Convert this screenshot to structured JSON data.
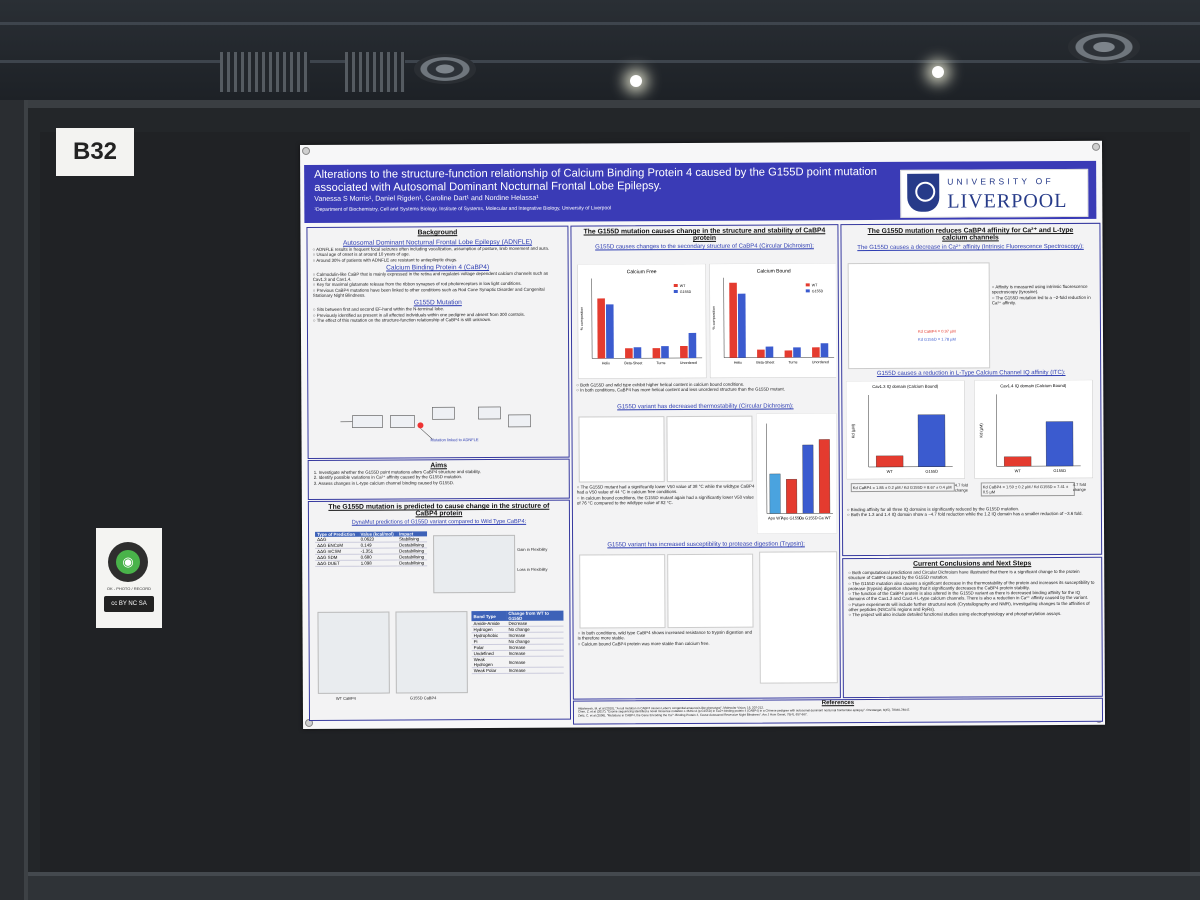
{
  "booth": {
    "id": "B32"
  },
  "cc_card": {
    "text": "OK - PHOTO / RECORD",
    "license": "cc BY NC SA"
  },
  "poster": {
    "title": "Alterations to the structure-function relationship of Calcium Binding Protein 4 caused by the G155D point mutation associated with Autosomal Dominant Nocturnal Frontal Lobe Epilepsy.",
    "authors": "Vanessa S Morris¹, Daniel Rigden¹, Caroline Dart¹ and Nordine Helassa¹",
    "affiliation": "¹Department of Biochemistry, Cell and Systems Biology, Institute of Systems, Molecular and Integrative Biology, University of Liverpool",
    "logo": {
      "line1": "UNIVERSITY OF",
      "line2": "LIVERPOOL"
    },
    "background": {
      "title": "Background",
      "adnfle_title": "Autosomal Dominant Nocturnal Frontal Lobe Epilepsy (ADNFLE)",
      "adnfle_1": "○ ADNFLE results in frequent focal seizures often including vocalization, assumption of posture, limb movement and aura.",
      "adnfle_2": "○ Usual age of onset is at around 10 years of age.",
      "adnfle_3": "○ Around 30% of patients with ADNFLE are resistant to antiepileptic drugs.",
      "cabp4_title": "Calcium Binding Protein 4 (CaBP4)",
      "cabp4_1": "○ Calmodulin-like CaBP that is mainly expressed in the retina and regulates voltage dependent calcium channels such as Cav1.3 and Cav1.4.",
      "cabp4_2": "○ Key for maximal glutamate release from the ribbon synapses of rod photoreceptors in low light conditions.",
      "cabp4_3": "○ Previous CaBP4 mutations have been linked to other conditions such as Rod Cone Synaptic Disorder and Congenital Stationary Night Blindness.",
      "g155d_title": "G155D Mutation",
      "g155d_1": "○ Sits between first and second EF-hand within the N-terminal lobe.",
      "g155d_2": "○ Previously identified as present in all affected individuals within one pedigree and absent from 300 controls.",
      "g155d_3": "○ The effect of this mutation on the structure-function relationship of CaBP4 is still unknown.",
      "mutation_label": "Mutation linked to ADNFLE"
    },
    "aims": {
      "title": "Aims",
      "a1": "1. Investigate whether the G155D point mutations alters CaBP4 structure and stability.",
      "a2": "2. Identify possible variations in Ca²⁺ affinity caused by the G155D mutation.",
      "a3": "3. Assess changes in L-type calcium channel binding caused by G155D."
    },
    "prediction": {
      "title": "The G155D mutation is predicted to cause change in the structure of CaBP4 protein",
      "subtitle": "DynaMut predictions of G155D variant compared to Wild Type CaBP4:",
      "headers": [
        "Type of Prediction",
        "Value (kcal/mol)",
        "Impact"
      ],
      "rows": [
        [
          "ΔΔG",
          "0.0623",
          "Stabilising"
        ],
        [
          "ΔΔG ENCoM",
          "0.149",
          "Destabilising"
        ],
        [
          "ΔΔG mCSM",
          "-1.351",
          "Destabilising"
        ],
        [
          "ΔΔG SDM",
          "0.680",
          "Destabilising"
        ],
        [
          "ΔΔG DUET",
          "1.098",
          "Destabilising"
        ]
      ],
      "gain": "Gain in Flexibility",
      "loss": "Loss in Flexibility",
      "bond_headers": [
        "Bond Type",
        "Change from WT to G155D"
      ],
      "bond_rows": [
        [
          "Amide-Amide",
          "Decrease"
        ],
        [
          "Hydrogen",
          "No change"
        ],
        [
          "Hydrophobic",
          "Increase"
        ],
        [
          "Pi",
          "No change"
        ],
        [
          "Polar",
          "Increase"
        ],
        [
          "Undefined",
          "Increase"
        ],
        [
          "Weak Hydrogen",
          "Increase"
        ],
        [
          "Weak Polar",
          "Increase"
        ]
      ],
      "wt_label": "WT CaBP4",
      "mut_label": "G155D CaBP4"
    },
    "structure": {
      "title": "The G155D mutation causes change in the structure and stability of CaBP4 protein",
      "cd_title": "G155D causes changes to the secondary structure of CaBP4 (Circular Dichroism):",
      "cf_label": "Calcium Free",
      "cb_label": "Calcium Bound",
      "ylabel": "% composition",
      "categories": [
        "Helix",
        "Beta-Sheet",
        "Turns",
        "Unordered"
      ],
      "cd_1": "○ Both G155D and wild type exhibit higher helical content in calcium bound conditions.",
      "cd_2": "○ In both conditions, CaBP4 has more helical content and less unordered structure than the G155D mutant.",
      "thermo_title": "G155D variant has decreased thermostability (Circular Dichroism):",
      "thermo_1": "○ The G155D mutant had a significantly lower V50 value of 38 °C while the wildtype CaBP4 had a V50 value of 44 °C in calcium free conditions.",
      "thermo_2": "○ In calcium bound conditions, the G155D mutant again had a significantly lower V50 value of 76 °C compared to the wildtype value of 82 °C.",
      "tryp_title": "G155D variant has increased susceptibility to protease digestion (Trypsin):",
      "tryp_1": "○ In both conditions, wild type CaBP4 shows increased resistance to trypsin digestion and is therefore more stable.",
      "tryp_2": "○ Calcium bound CaBP4 protein was more stable than calcium free."
    },
    "affinity": {
      "title": "The G155D mutation reduces CaBP4 affinity for Ca²⁺ and L-type calcium channels",
      "fluor_title": "The G155D causes a decrease in Ca²⁺ affinity (Intrinsic Fluorescence Spectroscopy):",
      "fluor_1": "○ Affinity is measured using intrinsic fluorescence spectroscopy (tyrosine).",
      "fluor_2": "○ The G155D mutation led to a ~2-fold reduction in Ca²⁺ affinity.",
      "kd_wt": "Kd CaBP4 = 0.97 µM",
      "kd_mut": "Kd G155D = 1.78 µM",
      "iq_title": "G155D causes a reduction in L-Type Calcium Channel IQ affinity (ITC):",
      "iq13": "Cav1.3 IQ domain (Calcium Bound)",
      "iq14": "Cav1.4 IQ domain (Calcium Bound)",
      "iq13_kd": "Kd CaBP4 = 1.85 ± 0.2 µM / Kd G155D = 8.67 ± 0.4 µM",
      "iq14_kd": "Kd CaBP4 = 1.59 ± 0.2 µM / Kd G155D = 7.41 ± 0.5 µM",
      "fold13": "4.7 fold change",
      "fold14": "4.7 fold change",
      "iq_1": "○ Binding affinity for all three IQ domains is significantly reduced by the G155D mutation.",
      "iq_2": "○ Both the 1.3 and 1.4 IQ domain show a ~4.7 fold reduction while the 1.2 IQ domain has a smaller reduction of ~3.6 fold."
    },
    "conclusions": {
      "title": "Current Conclusions and Next Steps",
      "c1": "○ Both computational predictions and Circular Dichroism have illustrated that there is a significant change to the protein structure of CaBP4 caused by the G155D mutation.",
      "c2": "○ The G155D mutation also causes a significant decrease in the thermostability of the protein and increases its susceptibility to protease (trypsin) digestion showing that it significantly decreases the CaBP4 protein stability.",
      "c3": "○ The function of the CaBP4 protein is also altered in the G155D variant as there is decreased binding affinity for the IQ domains of the Cav1.3 and Cav1.4 L-type calcium channels. There is also a reduction in Ca²⁺ affinity caused by the variant.",
      "c4": "○ Future experiments will include further structural work (Crystallography and NMR), investigating changes to the affinities of other peptides (NSCaTE regions and RyRs).",
      "c5": "○ The project will also include detailed functional studies using electrophysiology and phosphorylation assays."
    },
    "references": {
      "title": "References",
      "r1": "Aldahmesh, M. et al (2010), \"A null mutation in CABP4 causes Leber's congenital amaurosis-like phenotype\", Molecular Vision, 16, 207-212.",
      "r2": "Chen, Z. et al (2017), \"Exome sequencing identified a novel missense mutation c.464G>A (p.G155D) in Ca2+-binding protein 4 (CABP4) in a Chinese pedigree with autosomal dominant nocturnal frontal lobe epilepsy\". Oncotarget, 8(45), 78940-78947.",
      "r3": "Zeitz, C. et al (2006), \"Mutations in CABP4, the Gene Encoding the Ca²⁺-Binding Protein 4, Cause Autosomal Recessive Night Blindness\". Am J Hum Genet, 79(4), 657-667."
    }
  },
  "chart_data": [
    {
      "type": "bar",
      "title": "Calcium Free",
      "categories": [
        "Helix",
        "Beta-Sheet",
        "Turns",
        "Unordered"
      ],
      "ylabel": "% composition",
      "ylim": [
        0,
        80
      ],
      "series": [
        {
          "name": "WT",
          "values": [
            60,
            10,
            10,
            12
          ]
        },
        {
          "name": "G155D",
          "values": [
            54,
            11,
            12,
            25
          ]
        }
      ]
    },
    {
      "type": "bar",
      "title": "Calcium Bound",
      "categories": [
        "Helix",
        "Beta-Sheet",
        "Turns",
        "Unordered"
      ],
      "ylabel": "% composition",
      "ylim": [
        0,
        80
      ],
      "series": [
        {
          "name": "WT",
          "values": [
            75,
            8,
            7,
            10
          ]
        },
        {
          "name": "G155D",
          "values": [
            64,
            11,
            10,
            14
          ]
        }
      ]
    },
    {
      "type": "bar",
      "title": "V50",
      "categories": [
        "Apo WT",
        "Apo G155D",
        "Ca G155D",
        "Ca WT"
      ],
      "ylim": [
        0,
        100
      ],
      "values": [
        44,
        38,
        76,
        82
      ]
    },
    {
      "type": "bar",
      "title": "Cav1.3 IQ domain (Calcium Bound)",
      "categories": [
        "WT",
        "G155D"
      ],
      "ylabel": "Kd (µM)",
      "ylim": [
        0,
        12
      ],
      "values": [
        1.85,
        8.67
      ]
    },
    {
      "type": "bar",
      "title": "Cav1.4 IQ domain (Calcium Bound)",
      "categories": [
        "WT",
        "G155D"
      ],
      "ylabel": "Kd (µM)",
      "ylim": [
        0,
        12
      ],
      "values": [
        1.59,
        7.41
      ]
    }
  ],
  "colors": {
    "poster_header": "#3a3bb6",
    "wt": "#e43b2f",
    "g155d": "#3b5bcf",
    "fold_arrow": "#c8102e"
  }
}
